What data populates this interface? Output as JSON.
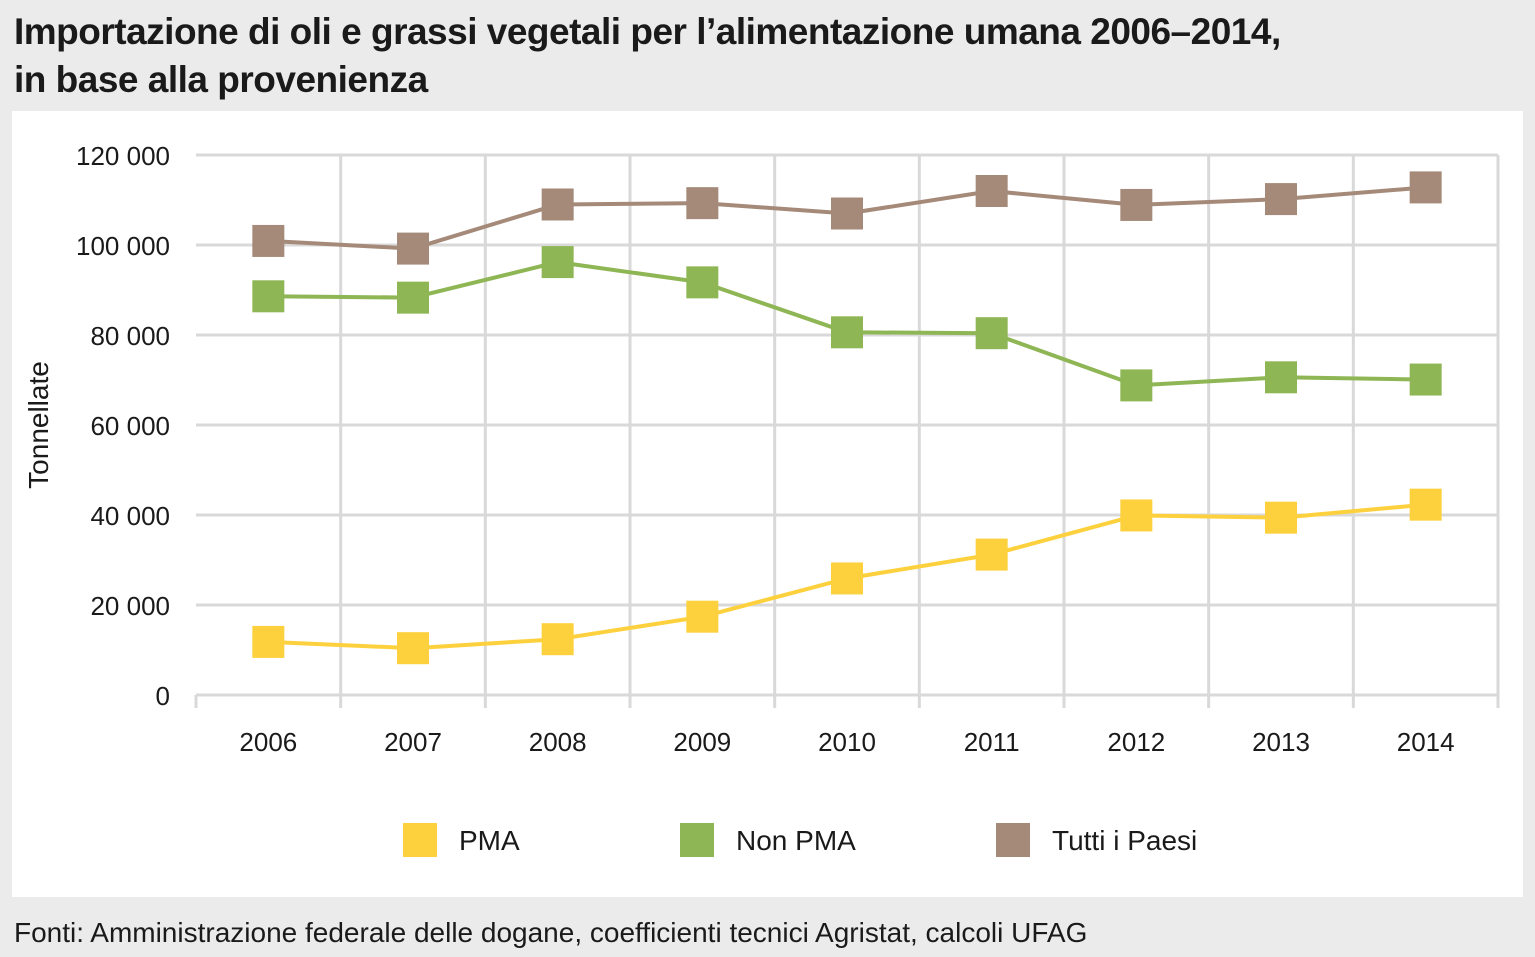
{
  "header": {
    "title_line1": "Importazione di oli e grassi vegetali per l’alimentazione umana 2006–2014,",
    "title_line2": "in base alla provenienza"
  },
  "footer": {
    "source": "Fonti: Amministrazione federale delle dogane, coefficienti tecnici Agristat, calcoli UFAG"
  },
  "chart_data": {
    "type": "line",
    "title": "Importazione di oli e grassi vegetali per l’alimentazione umana 2006–2014, in base alla provenienza",
    "xlabel": "",
    "ylabel": "Tonnellate",
    "x": [
      "2006",
      "2007",
      "2008",
      "2009",
      "2010",
      "2011",
      "2012",
      "2013",
      "2014"
    ],
    "ylim": [
      0,
      120000
    ],
    "yticks": [
      0,
      20000,
      40000,
      60000,
      80000,
      100000,
      120000
    ],
    "ytick_labels": [
      "0",
      "20 000",
      "40 000",
      "60 000",
      "80 000",
      "100 000",
      "120 000"
    ],
    "grid": true,
    "legend_position": "bottom",
    "series": [
      {
        "name": "PMA",
        "color": "#fdd13d",
        "marker": "square",
        "values": [
          11800,
          10400,
          12400,
          17400,
          25900,
          31200,
          39900,
          39400,
          42300
        ]
      },
      {
        "name": "Non PMA",
        "color": "#8fb655",
        "marker": "square",
        "values": [
          88600,
          88300,
          96200,
          91700,
          80600,
          80400,
          68800,
          70600,
          70100
        ]
      },
      {
        "name": "Tutti i Paesi",
        "color": "#a58a7a",
        "marker": "square",
        "values": [
          100900,
          99200,
          109000,
          109300,
          107000,
          112000,
          108900,
          110200,
          112800
        ]
      }
    ]
  }
}
